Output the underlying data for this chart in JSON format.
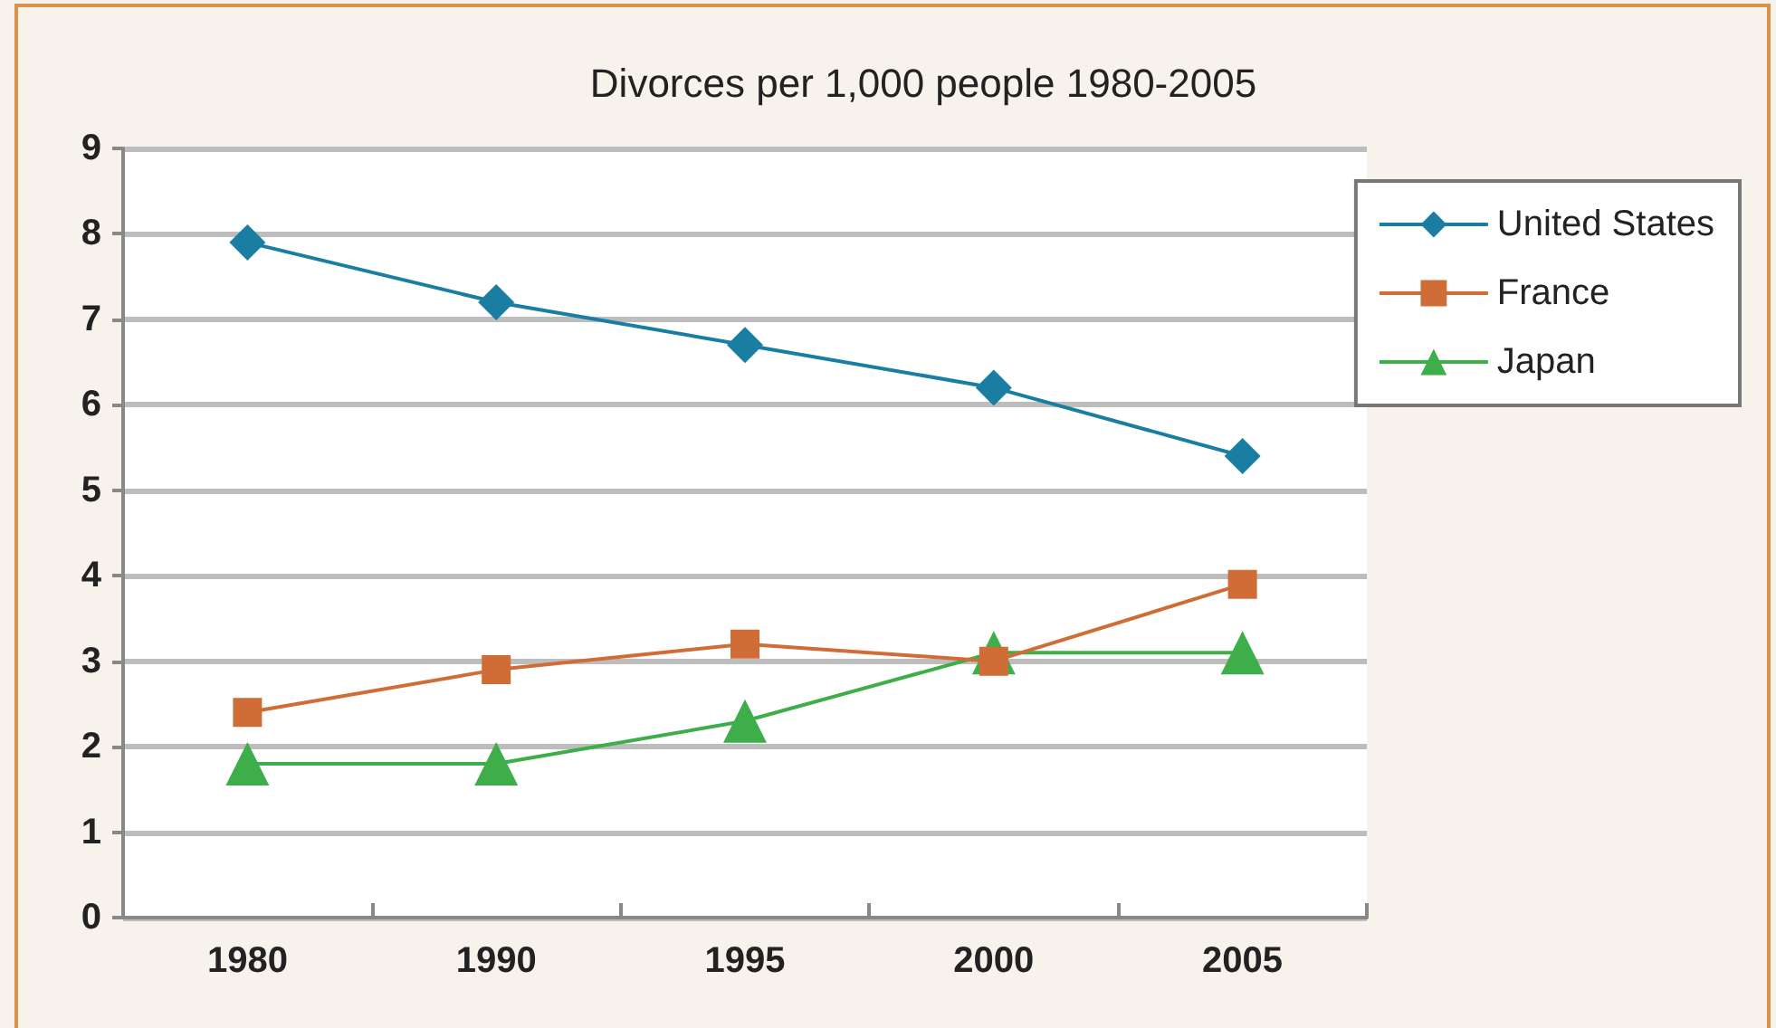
{
  "chart_data": {
    "type": "line",
    "title": "Divorces per 1,000 people 1980-2005",
    "categories": [
      "1980",
      "1990",
      "1995",
      "2000",
      "2005"
    ],
    "series": [
      {
        "name": "United States",
        "color": "#1a7ea3",
        "marker": "diamond",
        "values": [
          7.9,
          7.2,
          6.7,
          6.2,
          5.4
        ]
      },
      {
        "name": "France",
        "color": "#d06d37",
        "marker": "square",
        "values": [
          2.4,
          2.9,
          3.2,
          3.0,
          3.9
        ]
      },
      {
        "name": "Japan",
        "color": "#3eae4a",
        "marker": "triangle",
        "values": [
          1.8,
          1.8,
          2.3,
          3.1,
          3.1
        ]
      }
    ],
    "ylim": [
      0,
      9
    ],
    "yticks": [
      0,
      1,
      2,
      3,
      4,
      5,
      6,
      7,
      8,
      9
    ],
    "grid": "y",
    "legend": "top right"
  }
}
